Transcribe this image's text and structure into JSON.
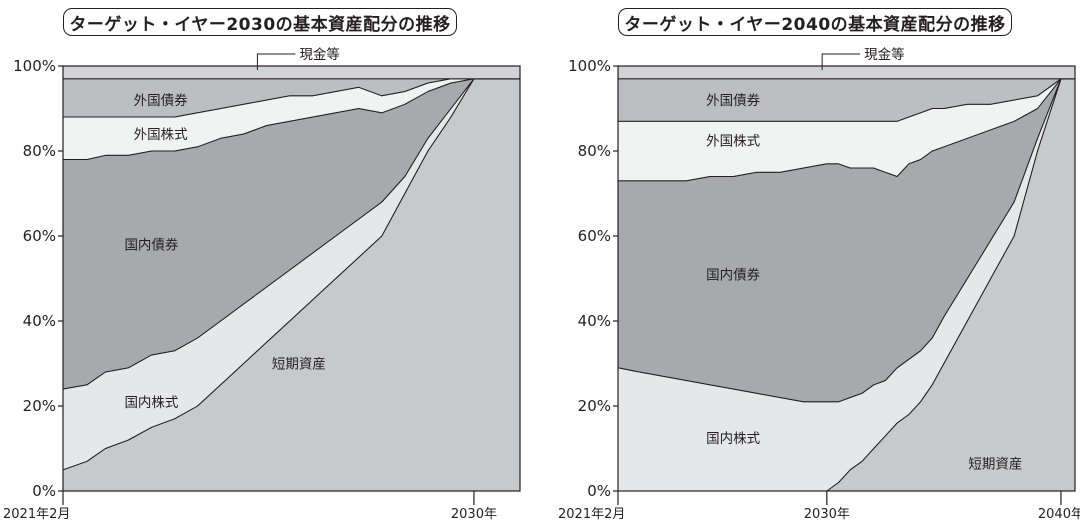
{
  "chart_data": [
    {
      "type": "area",
      "stacked": true,
      "title": "ターゲット・イヤー2030の基本資産配分の推移",
      "ylim": [
        0,
        100
      ],
      "yticks": [
        "0%",
        "20%",
        "40%",
        "60%",
        "80%",
        "100%"
      ],
      "xlim": [
        2021.08,
        2031.0
      ],
      "xticks": [
        {
          "x": 2021.08,
          "label": "2021年2月"
        },
        {
          "x": 2030.0,
          "label": "2030年"
        }
      ],
      "x": [
        2021.08,
        2021.6,
        2022.0,
        2022.5,
        2023.0,
        2023.5,
        2024.0,
        2024.5,
        2025.0,
        2025.5,
        2026.0,
        2026.5,
        2027.0,
        2027.5,
        2028.0,
        2028.5,
        2029.0,
        2029.5,
        2030.0
      ],
      "series": [
        {
          "name": "短期資産",
          "color": "#c8c9ca",
          "values": [
            5,
            7,
            10,
            12,
            15,
            17,
            20,
            25,
            30,
            35,
            40,
            45,
            50,
            55,
            60,
            70,
            80,
            88,
            97
          ]
        },
        {
          "name": "国内株式",
          "color": "#e6e7e8",
          "values": [
            19,
            18,
            18,
            17,
            17,
            16,
            16,
            15,
            14,
            13,
            12,
            11,
            10,
            9,
            8,
            4,
            3,
            2,
            0
          ]
        },
        {
          "name": "国内債券",
          "color": "#a7a9ac",
          "values": [
            54,
            53,
            51,
            50,
            48,
            47,
            45,
            43,
            40,
            38,
            35,
            32,
            29,
            26,
            21,
            17,
            11,
            6,
            0
          ]
        },
        {
          "name": "外国株式",
          "color": "#f1f2f2",
          "values": [
            10,
            10,
            9,
            9,
            8,
            8,
            8,
            7,
            7,
            6,
            6,
            5,
            5,
            5,
            4,
            3,
            2,
            1,
            0
          ]
        },
        {
          "name": "外国債券",
          "color": "#bcbec0",
          "values": [
            9,
            9,
            9,
            9,
            9,
            9,
            8,
            7,
            6,
            5,
            4,
            4,
            3,
            2,
            4,
            3,
            1,
            0,
            0
          ]
        },
        {
          "name": "現金等",
          "color": "#d1d3d4",
          "values": [
            3,
            3,
            3,
            3,
            3,
            3,
            3,
            3,
            3,
            3,
            3,
            3,
            3,
            3,
            3,
            3,
            3,
            3,
            3
          ]
        }
      ]
    },
    {
      "type": "area",
      "stacked": true,
      "title": "ターゲット・イヤー2040の基本資産配分の推移",
      "ylim": [
        0,
        100
      ],
      "yticks": [
        "0%",
        "20%",
        "40%",
        "60%",
        "80%",
        "100%"
      ],
      "xlim": [
        2021.08,
        2040.6
      ],
      "xticks": [
        {
          "x": 2021.08,
          "label": "2021年2月"
        },
        {
          "x": 2030.0,
          "label": "2030年"
        },
        {
          "x": 2040.0,
          "label": "2040年"
        }
      ],
      "x": [
        2021.08,
        2022.0,
        2023.0,
        2024.0,
        2025.0,
        2026.0,
        2027.0,
        2028.0,
        2029.0,
        2030.0,
        2030.5,
        2031.0,
        2031.5,
        2032.0,
        2032.5,
        2033.0,
        2033.5,
        2034.0,
        2034.5,
        2035.0,
        2036.0,
        2037.0,
        2038.0,
        2039.0,
        2040.0
      ],
      "series": [
        {
          "name": "短期資産",
          "color": "#c8c9ca",
          "values": [
            0,
            0,
            0,
            0,
            0,
            0,
            0,
            0,
            0,
            0,
            2,
            5,
            7,
            10,
            13,
            16,
            18,
            21,
            25,
            30,
            40,
            50,
            60,
            80,
            97
          ]
        },
        {
          "name": "国内株式",
          "color": "#e6e7e8",
          "values": [
            29,
            28,
            27,
            26,
            25,
            24,
            23,
            22,
            21,
            21,
            19,
            17,
            16,
            15,
            13,
            13,
            13,
            12,
            11,
            11,
            10,
            9,
            8,
            3,
            0
          ]
        },
        {
          "name": "国内債券",
          "color": "#a7a9ac",
          "values": [
            44,
            45,
            46,
            47,
            49,
            50,
            52,
            53,
            55,
            56,
            56,
            54,
            53,
            51,
            49,
            45,
            46,
            45,
            44,
            40,
            33,
            26,
            19,
            7,
            0
          ]
        },
        {
          "name": "外国株式",
          "color": "#f1f2f2",
          "values": [
            14,
            14,
            14,
            14,
            13,
            13,
            12,
            12,
            11,
            10,
            10,
            11,
            11,
            11,
            12,
            13,
            11,
            11,
            10,
            9,
            8,
            6,
            5,
            3,
            0
          ]
        },
        {
          "name": "外国債券",
          "color": "#bcbec0",
          "values": [
            10,
            10,
            10,
            10,
            10,
            10,
            10,
            10,
            10,
            10,
            10,
            10,
            10,
            10,
            10,
            10,
            9,
            8,
            7,
            7,
            6,
            6,
            5,
            4,
            0
          ]
        },
        {
          "name": "現金等",
          "color": "#d1d3d4",
          "values": [
            3,
            3,
            3,
            3,
            3,
            3,
            3,
            3,
            3,
            3,
            3,
            3,
            3,
            3,
            3,
            3,
            3,
            3,
            3,
            3,
            3,
            3,
            3,
            3,
            3
          ]
        }
      ]
    }
  ]
}
